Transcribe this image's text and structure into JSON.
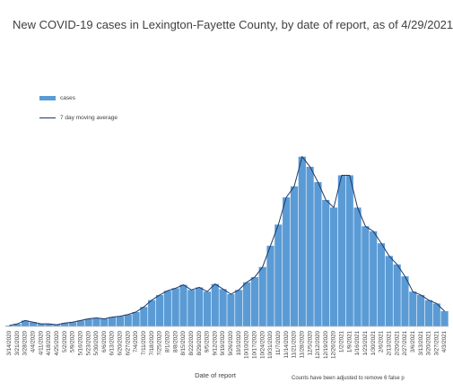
{
  "chart_data": {
    "type": "bar",
    "title": "New COVID-19 cases in Lexington-Fayette County, by date of report, as of 4/29/2021",
    "xlabel": "Date of report",
    "ylabel": "",
    "ylim": [
      0,
      300
    ],
    "grid": false,
    "legend_position": "upper-left",
    "note": "Counts have been adjusted to remove 6 false p",
    "tick_labels": [
      "3/14/2020",
      "3/21/2020",
      "3/28/2020",
      "4/4/2020",
      "4/11/2020",
      "4/18/2020",
      "4/25/2020",
      "5/2/2020",
      "5/9/2020",
      "5/16/2020",
      "5/23/2020",
      "5/30/2020",
      "6/6/2020",
      "6/13/2020",
      "6/20/2020",
      "6/27/2020",
      "7/4/2020",
      "7/11/2020",
      "7/18/2020",
      "7/25/2020",
      "8/1/2020",
      "8/8/2020",
      "8/15/2020",
      "8/22/2020",
      "8/29/2020",
      "9/5/2020",
      "9/12/2020",
      "9/19/2020",
      "9/26/2020",
      "10/3/2020",
      "10/10/2020",
      "10/17/2020",
      "10/24/2020",
      "10/31/2020",
      "11/7/2020",
      "11/14/2020",
      "11/21/2020",
      "11/28/2020",
      "12/5/2020",
      "12/12/2020",
      "12/19/2020",
      "12/26/2020",
      "1/2/2021",
      "1/9/2021",
      "1/16/2021",
      "1/23/2021",
      "1/30/2021",
      "2/6/2021",
      "2/13/2021",
      "2/20/2021",
      "2/27/2021",
      "3/6/2021",
      "3/13/2021",
      "3/20/2021",
      "3/27/2021",
      "4/3/2021"
    ],
    "series": [
      {
        "name": "cases",
        "kind": "bar",
        "color": "#5b9bd5",
        "weekly_values": [
          1,
          3,
          7,
          5,
          3,
          3,
          2,
          4,
          5,
          7,
          9,
          10,
          9,
          11,
          12,
          14,
          17,
          23,
          31,
          37,
          42,
          45,
          49,
          43,
          46,
          41,
          50,
          44,
          38,
          43,
          52,
          58,
          70,
          95,
          120,
          152,
          165,
          200,
          188,
          170,
          149,
          140,
          178,
          178,
          140,
          118,
          112,
          98,
          83,
          73,
          59,
          41,
          37,
          31,
          27,
          18
        ]
      },
      {
        "name": "7 day moving average",
        "kind": "line",
        "color": "#1f3864",
        "weekly_values": [
          1,
          3,
          7,
          5,
          3,
          3,
          2,
          4,
          5,
          7,
          9,
          10,
          9,
          11,
          12,
          14,
          17,
          23,
          31,
          37,
          42,
          45,
          49,
          43,
          46,
          41,
          50,
          44,
          38,
          43,
          52,
          58,
          70,
          95,
          120,
          152,
          165,
          200,
          188,
          170,
          149,
          140,
          178,
          178,
          140,
          118,
          112,
          98,
          83,
          73,
          59,
          41,
          37,
          31,
          27,
          18
        ]
      }
    ]
  }
}
